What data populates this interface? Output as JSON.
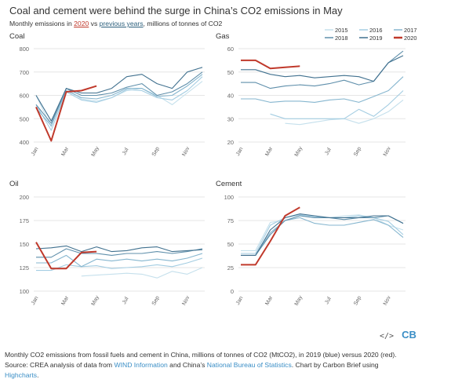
{
  "title": "Coal and cement were behind the surge in China’s CO2 emissions in May",
  "subtitle": {
    "prefix": "Monthly emissions in ",
    "year": "2020",
    "middle": " vs ",
    "prev": "previous years",
    "suffix": ", millions of tonnes of CO2"
  },
  "legend": [
    {
      "name": "2015",
      "color": "#c5e0ec",
      "width": 1
    },
    {
      "name": "2016",
      "color": "#a4cde2",
      "width": 1
    },
    {
      "name": "2017",
      "color": "#86b6cf",
      "width": 1
    },
    {
      "name": "2018",
      "color": "#5f8fab",
      "width": 1
    },
    {
      "name": "2019",
      "color": "#41718f",
      "width": 1
    },
    {
      "name": "2020",
      "color": "#c0392b",
      "width": 2
    }
  ],
  "chart_data": [
    {
      "type": "line",
      "title": "Coal",
      "ylim": [
        400,
        800
      ],
      "yticks": [
        400,
        500,
        600,
        700,
        800
      ],
      "xticks": [
        "Jan",
        "Mar",
        "May",
        "Jul",
        "Sep",
        "Nov"
      ],
      "months": [
        1,
        2,
        3,
        4,
        5,
        6,
        7,
        8,
        9,
        10,
        11,
        12
      ],
      "series": [
        {
          "name": "2015",
          "values": [
            600,
            465,
            630,
            585,
            575,
            590,
            620,
            630,
            600,
            560,
            610,
            660
          ]
        },
        {
          "name": "2016",
          "values": [
            560,
            450,
            615,
            580,
            570,
            590,
            625,
            620,
            590,
            580,
            620,
            680
          ]
        },
        {
          "name": "2017",
          "values": [
            545,
            470,
            620,
            590,
            585,
            600,
            630,
            630,
            595,
            600,
            640,
            690
          ]
        },
        {
          "name": "2018",
          "values": [
            560,
            480,
            630,
            600,
            600,
            610,
            635,
            650,
            600,
            615,
            650,
            700
          ]
        },
        {
          "name": "2019",
          "values": [
            600,
            490,
            630,
            610,
            610,
            630,
            680,
            690,
            650,
            630,
            700,
            720
          ]
        },
        {
          "name": "2020",
          "values": [
            550,
            405,
            615,
            620,
            640
          ]
        }
      ]
    },
    {
      "type": "line",
      "title": "Gas",
      "ylim": [
        20,
        60
      ],
      "yticks": [
        20,
        30,
        40,
        50,
        60
      ],
      "xticks": [
        "Jan",
        "Mar",
        "May",
        "Jul",
        "Sep",
        "Nov"
      ],
      "months": [
        1,
        2,
        3,
        4,
        5,
        6,
        7,
        8,
        9,
        10,
        11,
        12
      ],
      "series": [
        {
          "name": "2015",
          "values": [
            null,
            null,
            null,
            28,
            27.5,
            28.5,
            29.5,
            30,
            28,
            30,
            33,
            38
          ]
        },
        {
          "name": "2016",
          "values": [
            null,
            null,
            32,
            30,
            30,
            30,
            30,
            30,
            34,
            31,
            36,
            42
          ]
        },
        {
          "name": "2017",
          "values": [
            38.5,
            38.5,
            37,
            37.5,
            37.5,
            37,
            38,
            38.5,
            37,
            39.5,
            42,
            48
          ]
        },
        {
          "name": "2018",
          "values": [
            45.5,
            45.5,
            43,
            44,
            44.5,
            44,
            45,
            46.5,
            44.5,
            46,
            54,
            59
          ]
        },
        {
          "name": "2019",
          "values": [
            51,
            51,
            49,
            48,
            48.5,
            47.5,
            48,
            48.5,
            48,
            46,
            54,
            57
          ]
        },
        {
          "name": "2020",
          "values": [
            55,
            55,
            51.5,
            52,
            52.5
          ]
        }
      ]
    },
    {
      "type": "line",
      "title": "Oil",
      "ylim": [
        100,
        200
      ],
      "yticks": [
        100,
        125,
        150,
        175,
        200
      ],
      "xticks": [
        "Jan",
        "Mar",
        "May",
        "Jul",
        "Sep",
        "Nov"
      ],
      "months": [
        1,
        2,
        3,
        4,
        5,
        6,
        7,
        8,
        9,
        10,
        11,
        12
      ],
      "series": [
        {
          "name": "2015",
          "values": [
            null,
            null,
            null,
            116,
            117,
            118,
            119,
            118,
            114,
            121,
            118,
            125
          ]
        },
        {
          "name": "2016",
          "values": [
            122,
            122,
            128,
            126,
            127,
            124,
            125,
            126,
            128,
            126,
            130,
            135
          ]
        },
        {
          "name": "2017",
          "values": [
            130,
            130,
            138,
            126,
            134,
            132,
            134,
            132,
            134,
            132,
            135,
            140
          ]
        },
        {
          "name": "2018",
          "values": [
            136,
            136,
            145,
            140,
            140,
            138,
            140,
            140,
            142,
            140,
            142,
            145
          ]
        },
        {
          "name": "2019",
          "values": [
            145,
            146,
            148,
            142,
            147,
            142,
            143,
            146,
            147,
            142,
            143,
            144
          ]
        },
        {
          "name": "2020",
          "values": [
            152,
            124,
            124,
            141,
            142
          ]
        }
      ]
    },
    {
      "type": "line",
      "title": "Cement",
      "ylim": [
        0,
        100
      ],
      "yticks": [
        0,
        25,
        50,
        75,
        100
      ],
      "xticks": [
        "Jan",
        "Mar",
        "May",
        "Jul",
        "Sep",
        "Nov"
      ],
      "months": [
        1,
        2,
        3,
        4,
        5,
        6,
        7,
        8,
        9,
        10,
        11,
        12
      ],
      "series": [
        {
          "name": "2015",
          "values": [
            43,
            43,
            73,
            75,
            80,
            80,
            78,
            80,
            81,
            78,
            70,
            65
          ]
        },
        {
          "name": "2016",
          "values": [
            40,
            40,
            70,
            78,
            81,
            79,
            78,
            78,
            80,
            78,
            74,
            60
          ]
        },
        {
          "name": "2017",
          "values": [
            38,
            38,
            62,
            75,
            78,
            72,
            70,
            70,
            73,
            76,
            70,
            57
          ]
        },
        {
          "name": "2018",
          "values": [
            38,
            38,
            60,
            75,
            80,
            78,
            78,
            76,
            78,
            78,
            80,
            72
          ]
        },
        {
          "name": "2019",
          "values": [
            38,
            38,
            65,
            78,
            82,
            80,
            78,
            78,
            78,
            80,
            80,
            72
          ]
        },
        {
          "name": "2020",
          "values": [
            28,
            28,
            53,
            80,
            89
          ]
        }
      ]
    }
  ],
  "footer": {
    "line1": "Monthly CO2 emissions from fossil fuels and cement in China, millions of tonnes of CO2 (MtCO2), in 2019 (blue) versus 2020 (red).",
    "src_prefix": "Source: CREA analysis of data from ",
    "src_link1": "WIND Information",
    "src_mid": " and China’s ",
    "src_link2": "National Bureau of Statistics",
    "src_suffix": ". Chart by Carbon Brief using",
    "src_link3": "Highcharts",
    "src_end": "."
  },
  "logo": {
    "code": "</>",
    "brand": "CB"
  }
}
